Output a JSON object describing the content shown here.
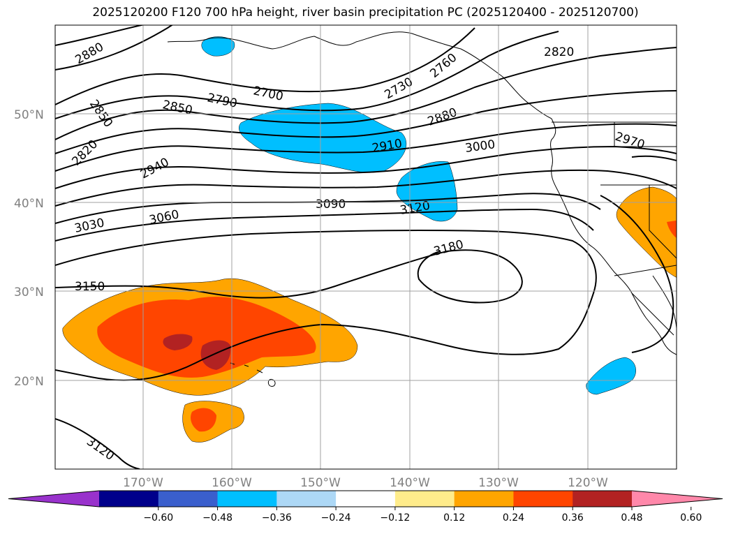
{
  "title": "2025120200 F120 700 hPa height, river basin precipitation PC (2025120400 - 2025120700)",
  "axes": {
    "lat_labels": [
      "50°N",
      "40°N",
      "30°N",
      "20°N"
    ],
    "lon_labels": [
      "170°W",
      "160°W",
      "150°W",
      "140°W",
      "130°W",
      "120°W"
    ]
  },
  "contour_labels": [
    "2880",
    "2850",
    "2820",
    "2700",
    "2790",
    "2850",
    "2940",
    "3030",
    "3060",
    "3090",
    "2730",
    "2760",
    "2880",
    "2910",
    "3000",
    "3120",
    "2820",
    "2970",
    "3180",
    "3150",
    "3120"
  ],
  "colorbar": {
    "ticks": [
      "−0.60",
      "−0.48",
      "−0.36",
      "−0.24",
      "−0.12",
      "0.12",
      "0.24",
      "0.36",
      "0.48",
      "0.60"
    ],
    "colors": [
      "#9932cc",
      "#00008b",
      "#3a5fcd",
      "#00bfff",
      "#add8f6",
      "#ffffff",
      "#ffec8b",
      "#ffa500",
      "#ff4500",
      "#b22222",
      "#ff88aa"
    ]
  },
  "colors": {
    "negative_precip": "#00bfff",
    "positive_low": "#ffa500",
    "positive_mid": "#ff4500",
    "positive_high": "#b22222"
  }
}
